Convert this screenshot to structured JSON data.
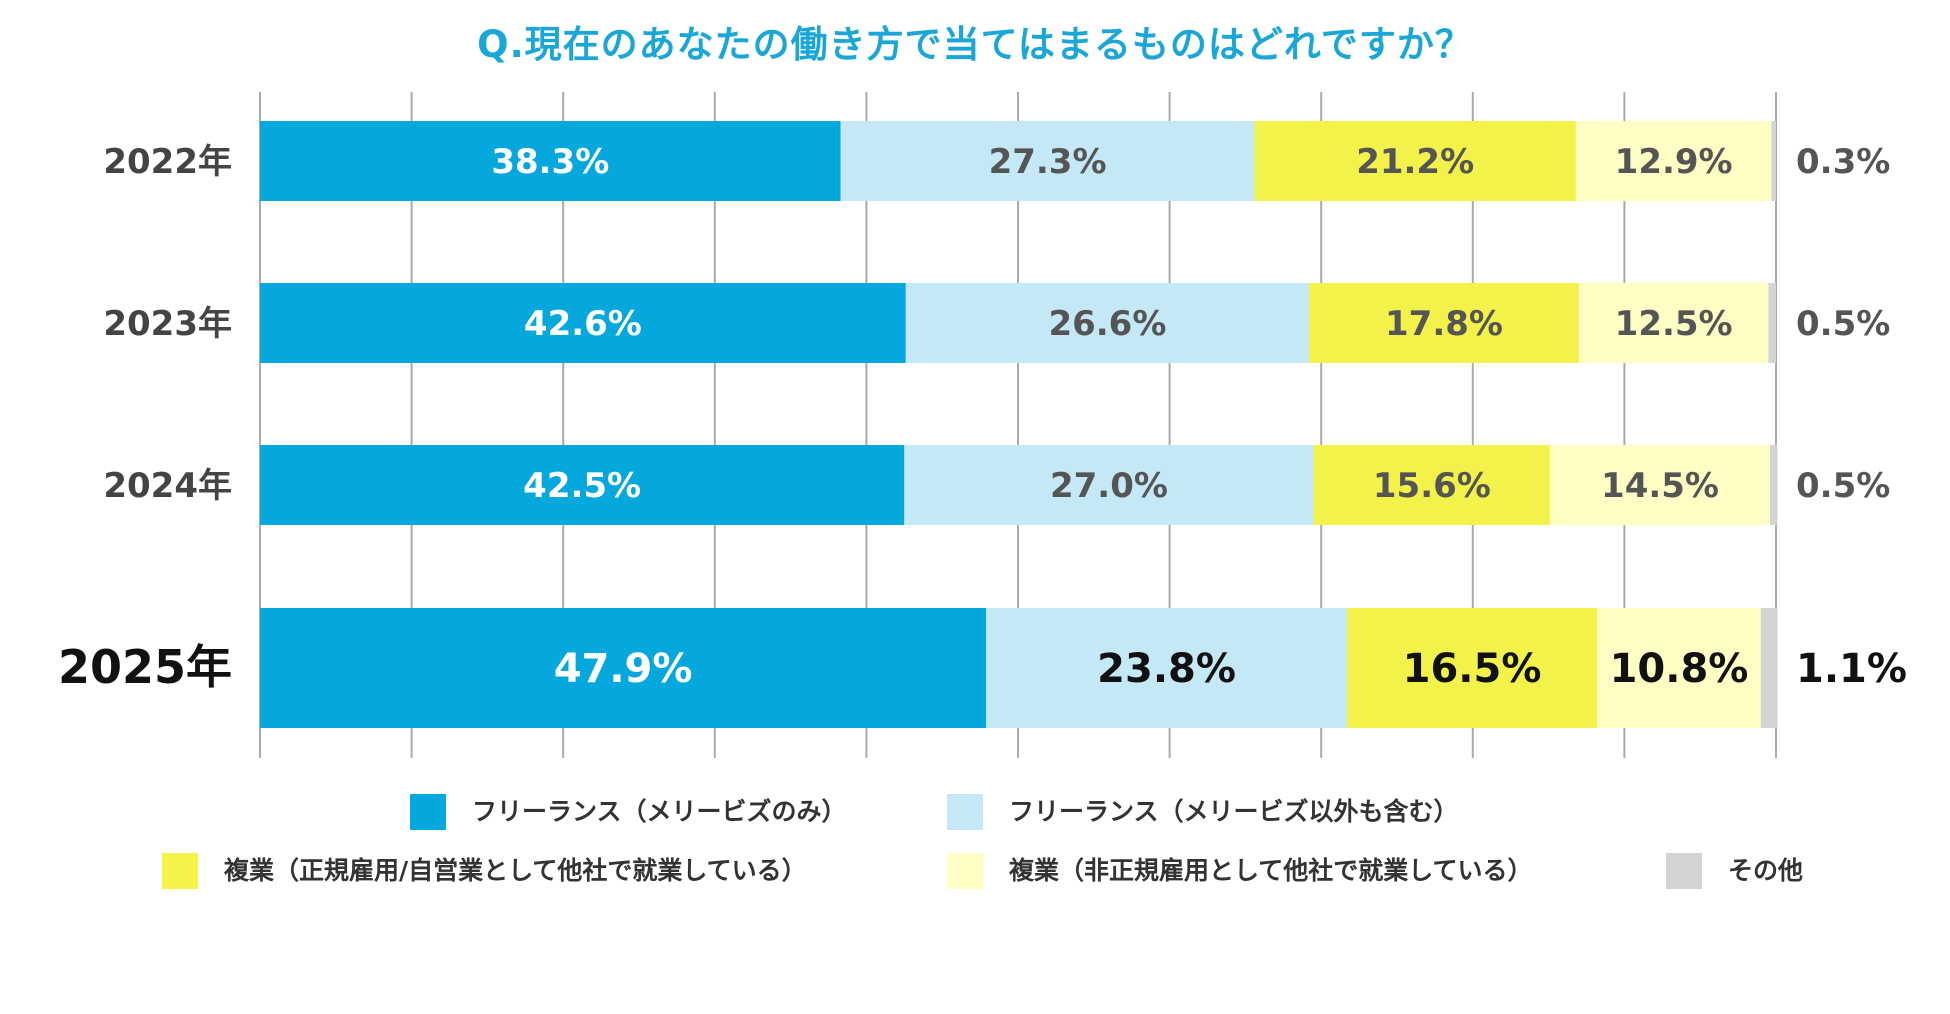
{
  "title": "Q.現在のあなたの働き方で当てはまるものはどれですか？",
  "colors": {
    "freelance_only": "#04a8dc",
    "freelance_plus": "#c4e8f6",
    "side_regular": "#f2f24a",
    "side_nonregular": "#fefec4",
    "other": "#d4d4d4",
    "grid": "#aaaaaa"
  },
  "legend": [
    {
      "label": "フリーランス（メリービズのみ）",
      "color": "#04a8dc"
    },
    {
      "label": "フリーランス（メリービズ以外も含む）",
      "color": "#c4e8f6"
    },
    {
      "label": "複業（正規雇用/自営業として他社で就業している）",
      "color": "#f2f24a"
    },
    {
      "label": "複業（非正規雇用として他社で就業している）",
      "color": "#fefec4"
    },
    {
      "label": "その他",
      "color": "#d4d4d4"
    }
  ],
  "chart_data": {
    "type": "bar",
    "orientation": "horizontal-stacked-100",
    "title": "Q.現在のあなたの働き方で当てはまるものはどれですか？",
    "categories": [
      "2022年",
      "2023年",
      "2024年",
      "2025年"
    ],
    "highlight_category": "2025年",
    "xlim": [
      0,
      100
    ],
    "grid": true,
    "legend_position": "bottom",
    "series": [
      {
        "name": "フリーランス（メリービズのみ）",
        "values": [
          38.3,
          42.6,
          42.5,
          47.9
        ],
        "labels": [
          "38.3%",
          "42.6%",
          "42.5%",
          "47.9%"
        ]
      },
      {
        "name": "フリーランス（メリービズ以外も含む）",
        "values": [
          27.3,
          26.6,
          27.0,
          23.8
        ],
        "labels": [
          "27.3%",
          "26.6%",
          "27.0%",
          "23.8%"
        ]
      },
      {
        "name": "複業（正規雇用/自営業として他社で就業している）",
        "values": [
          21.2,
          17.8,
          15.6,
          16.5
        ],
        "labels": [
          "21.2%",
          "17.8%",
          "15.6%",
          "16.5%"
        ]
      },
      {
        "name": "複業（非正規雇用として他社で就業している）",
        "values": [
          12.9,
          12.5,
          14.5,
          10.8
        ],
        "labels": [
          "12.9%",
          "12.5%",
          "14.5%",
          "10.8%"
        ]
      },
      {
        "name": "その他",
        "values": [
          0.3,
          0.5,
          0.5,
          1.1
        ],
        "labels": [
          "0.3%",
          "0.5%",
          "0.5%",
          "1.1%"
        ]
      }
    ]
  }
}
